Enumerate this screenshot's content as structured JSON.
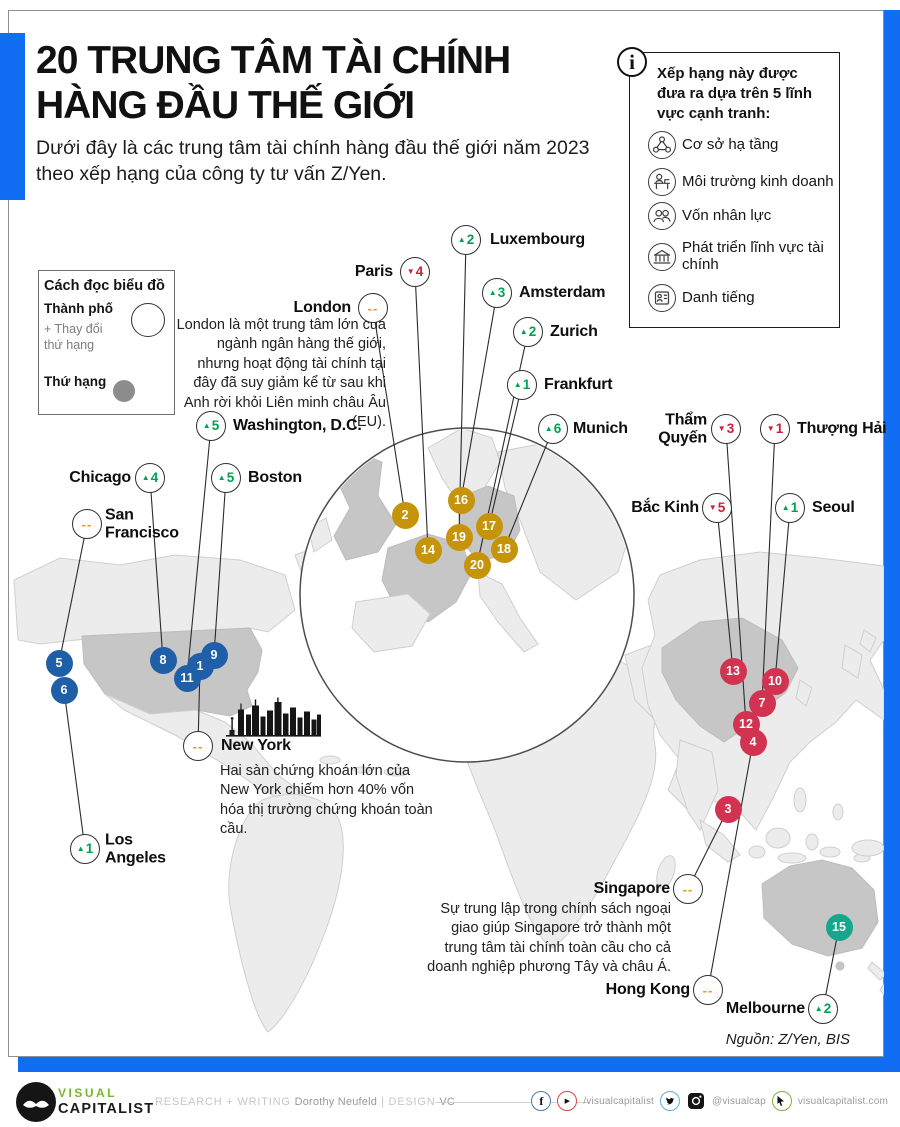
{
  "header": {
    "title_line1": "20 TRUNG TÂM TÀI CHÍNH",
    "title_line2": "HÀNG ĐẦU THẾ GIỚI",
    "subtitle": "Dưới đây là các trung tâm tài chính hàng đầu thế giới năm 2023 theo xếp hạng của công ty tư vấn Z/Yen."
  },
  "info_box": {
    "icon_glyph": "i",
    "heading": "Xếp hạng này được đưa ra dựa trên 5 lĩnh vực cạnh tranh:",
    "items": [
      {
        "icon": "infrastructure-icon",
        "label": "Cơ sở hạ tầng"
      },
      {
        "icon": "business-environment-icon",
        "label": "Môi trường kinh doanh"
      },
      {
        "icon": "human-capital-icon",
        "label": "Vốn nhân lực"
      },
      {
        "icon": "financial-sector-icon",
        "label": "Phát triển lĩnh vực tài chính"
      },
      {
        "icon": "reputation-icon",
        "label": "Danh tiếng"
      }
    ]
  },
  "legend": {
    "title": "Cách đọc biểu đồ",
    "city": "Thành phố",
    "change": "+ Thay đổi thứ hạng",
    "rank": "Thứ hạng"
  },
  "notes": {
    "london": "London là một trung tâm lớn của ngành ngân hàng thế giới, nhưng hoạt động tài chính tại đây đã suy giảm kể từ sau khi Anh rời khỏi Liên minh châu Âu (EU).",
    "new_york": "Hai sàn chứng khoán lớn của New York chiếm hơn 40% vốn hóa thị trường chứng khoán toàn cầu.",
    "singapore": "Sự trung lập trong chính sách ngoại giao giúp Singapore trở thành một trung tâm tài chính toàn cầu cho cả doanh nghiệp phương Tây và châu Á."
  },
  "source": "Nguồn: Z/Yen, BIS",
  "footer": {
    "brand_top": "VISUAL",
    "brand_bottom": "CAPITALIST",
    "credit_label_1": "RESEARCH + WRITING",
    "credit_name_1": "Dorothy Neufeld",
    "divider": "|",
    "credit_label_2": "DESIGN",
    "credit_name_2": "VC",
    "social_handle_1": "/visualcapitalist",
    "social_handle_2": "@visualcap",
    "social_handle_3": "visualcapitalist.com"
  },
  "colors": {
    "accent_blue": "#116df2",
    "up_green": "#00a14f",
    "down_red": "#cc1f38",
    "same_orange": "#e89c00",
    "dot_blue": "#1f5fa8",
    "dot_gold": "#c5940b",
    "dot_red": "#d23350",
    "dot_teal": "#14a78c"
  },
  "cities": [
    {
      "id": "new-york",
      "name": "New York",
      "rank": 1,
      "direction": "same",
      "amount": null,
      "group": "americas"
    },
    {
      "id": "london",
      "name": "London",
      "rank": 2,
      "direction": "same",
      "amount": null,
      "group": "europe"
    },
    {
      "id": "singapore",
      "name": "Singapore",
      "rank": 3,
      "direction": "same",
      "amount": null,
      "group": "asia"
    },
    {
      "id": "hong-kong",
      "name": "Hong Kong",
      "rank": 4,
      "direction": "same",
      "amount": null,
      "group": "asia"
    },
    {
      "id": "san-francisco",
      "name": "San Francisco",
      "rank": 5,
      "direction": "same",
      "amount": null,
      "group": "americas"
    },
    {
      "id": "los-angeles",
      "name": "Los Angeles",
      "rank": 6,
      "direction": "up",
      "amount": 1,
      "group": "americas"
    },
    {
      "id": "shanghai",
      "name": "Thượng Hải",
      "rank": 7,
      "direction": "down",
      "amount": 1,
      "group": "asia"
    },
    {
      "id": "chicago",
      "name": "Chicago",
      "rank": 8,
      "direction": "up",
      "amount": 4,
      "group": "americas"
    },
    {
      "id": "boston",
      "name": "Boston",
      "rank": 9,
      "direction": "up",
      "amount": 5,
      "group": "americas"
    },
    {
      "id": "seoul",
      "name": "Seoul",
      "rank": 10,
      "direction": "up",
      "amount": 1,
      "group": "asia"
    },
    {
      "id": "washington",
      "name": "Washington, D.C.",
      "rank": 11,
      "direction": "up",
      "amount": 5,
      "group": "americas"
    },
    {
      "id": "shenzhen",
      "name": "Thẩm Quyến",
      "rank": 12,
      "direction": "down",
      "amount": 3,
      "group": "asia"
    },
    {
      "id": "beijing",
      "name": "Bắc Kinh",
      "rank": 13,
      "direction": "down",
      "amount": 5,
      "group": "asia"
    },
    {
      "id": "paris",
      "name": "Paris",
      "rank": 14,
      "direction": "down",
      "amount": 4,
      "group": "europe"
    },
    {
      "id": "melbourne",
      "name": "Melbourne",
      "rank": 15,
      "direction": "up",
      "amount": 2,
      "group": "oceania"
    },
    {
      "id": "amsterdam",
      "name": "Amsterdam",
      "rank": 16,
      "direction": "up",
      "amount": 3,
      "group": "europe"
    },
    {
      "id": "frankfurt",
      "name": "Frankfurt",
      "rank": 17,
      "direction": "up",
      "amount": 1,
      "group": "europe"
    },
    {
      "id": "munich",
      "name": "Munich",
      "rank": 18,
      "direction": "up",
      "amount": 6,
      "group": "europe"
    },
    {
      "id": "luxembourg",
      "name": "Luxembourg",
      "rank": 19,
      "direction": "up",
      "amount": 2,
      "group": "europe"
    },
    {
      "id": "zurich",
      "name": "Zurich",
      "rank": 20,
      "direction": "up",
      "amount": 2,
      "group": "europe"
    }
  ]
}
